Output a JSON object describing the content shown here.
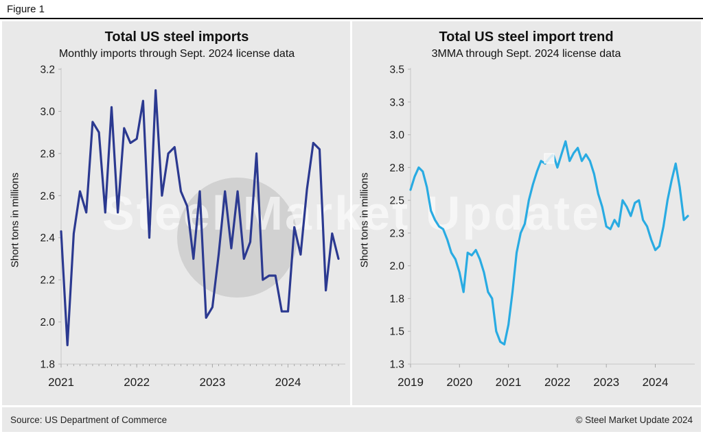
{
  "figure_label": "Figure 1",
  "watermark": {
    "text": "Steel Market Update"
  },
  "footer": {
    "source": "Source: US Department of Commerce",
    "copyright": "© Steel Market Update 2024"
  },
  "chart_data": [
    {
      "type": "line",
      "title": "Total US steel imports",
      "subtitle": "Monthly imports through Sept. 2024 license data",
      "ylabel": "Short tons in millions",
      "line_color": "#2b3990",
      "ylim": [
        1.8,
        3.2
      ],
      "y_tick_values": [
        1.8,
        2.0,
        2.2,
        2.4,
        2.6,
        2.8,
        3.0,
        3.2
      ],
      "y_tick_labels": [
        "1.8",
        "2.0",
        "2.2",
        "2.4",
        "2.6",
        "2.8",
        "3.0",
        "3.2"
      ],
      "x_tick_labels": [
        "2021",
        "2022",
        "2023",
        "2024"
      ],
      "x_start_year": 2021,
      "minor_ticks": true,
      "values": [
        2.43,
        1.89,
        2.42,
        2.62,
        2.52,
        2.95,
        2.9,
        2.52,
        3.02,
        2.52,
        2.92,
        2.85,
        2.87,
        3.05,
        2.4,
        3.1,
        2.6,
        2.8,
        2.83,
        2.62,
        2.55,
        2.3,
        2.62,
        2.02,
        2.07,
        2.32,
        2.62,
        2.35,
        2.62,
        2.3,
        2.38,
        2.8,
        2.2,
        2.22,
        2.22,
        2.05,
        2.05,
        2.45,
        2.32,
        2.63,
        2.85,
        2.82,
        2.15,
        2.42,
        2.3
      ]
    },
    {
      "type": "line",
      "title": "Total US steel import trend",
      "subtitle": "3MMA through Sept. 2024 license data",
      "ylabel": "Short tons in millions",
      "line_color": "#29abe2",
      "ylim": [
        1.25,
        3.5
      ],
      "y_tick_values": [
        1.25,
        1.5,
        1.75,
        2.0,
        2.25,
        2.5,
        2.75,
        3.0,
        3.25,
        3.5
      ],
      "y_tick_labels": [
        "1.3",
        "1.5",
        "1.8",
        "2.0",
        "2.3",
        "2.5",
        "2.8",
        "3.0",
        "3.3",
        "3.5"
      ],
      "x_tick_labels": [
        "2019",
        "2020",
        "2021",
        "2022",
        "2023",
        "2024"
      ],
      "x_start_year": 2019,
      "minor_ticks": false,
      "marker": {
        "index": 34
      },
      "values": [
        2.58,
        2.68,
        2.75,
        2.72,
        2.6,
        2.42,
        2.35,
        2.3,
        2.28,
        2.2,
        2.1,
        2.05,
        1.95,
        1.8,
        2.1,
        2.08,
        2.12,
        2.05,
        1.95,
        1.8,
        1.75,
        1.5,
        1.42,
        1.4,
        1.55,
        1.8,
        2.1,
        2.25,
        2.32,
        2.5,
        2.62,
        2.72,
        2.8,
        2.78,
        2.82,
        2.85,
        2.75,
        2.85,
        2.95,
        2.8,
        2.86,
        2.9,
        2.8,
        2.85,
        2.8,
        2.7,
        2.55,
        2.45,
        2.3,
        2.28,
        2.35,
        2.3,
        2.5,
        2.45,
        2.38,
        2.48,
        2.5,
        2.35,
        2.3,
        2.2,
        2.12,
        2.15,
        2.3,
        2.5,
        2.65,
        2.78,
        2.6,
        2.35,
        2.38
      ]
    }
  ]
}
